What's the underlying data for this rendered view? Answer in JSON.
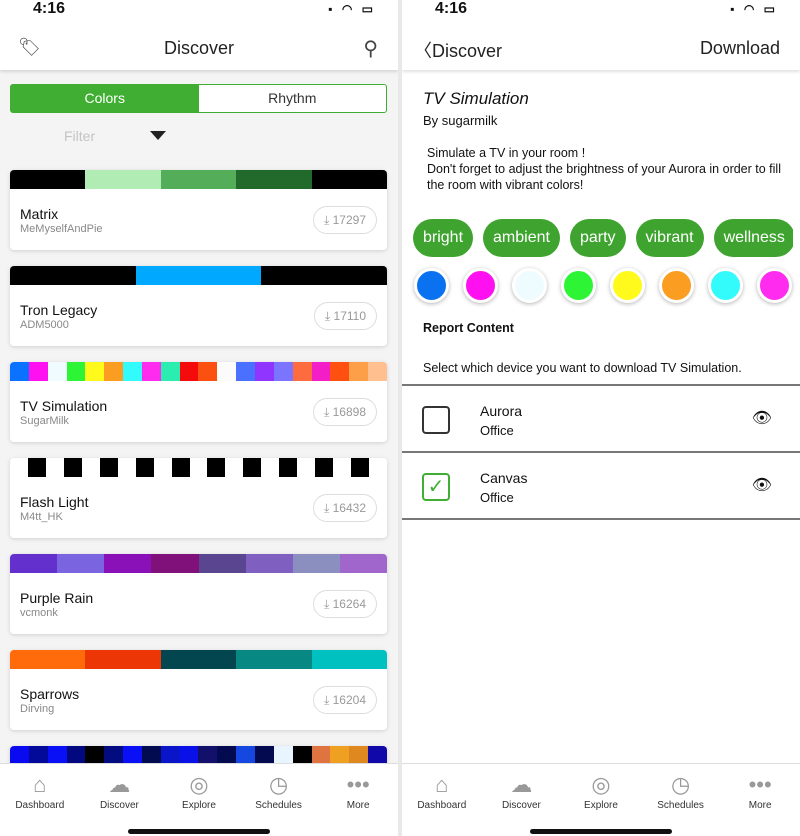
{
  "status": {
    "time": "4:16",
    "icons": "▪ ◠ ▭"
  },
  "left": {
    "title": "Discover",
    "tabs": [
      "Colors",
      "Rhythm"
    ],
    "filter_placeholder": "Filter",
    "cards": [
      {
        "name": "Matrix",
        "author": "MeMyselfAndPie",
        "downloads": "17297",
        "colors": [
          "#000000",
          "#b2ecb5",
          "#53ad59",
          "#226a2b",
          "#000000"
        ]
      },
      {
        "name": "Tron Legacy",
        "author": "ADM5000",
        "downloads": "17110",
        "colors": [
          "#000000",
          "#00a8ff",
          "#000000"
        ]
      },
      {
        "name": "TV Simulation",
        "author": "SugarMilk",
        "downloads": "16898",
        "colors": [
          "#0a72ff",
          "#ff10f0",
          "#f0fbff",
          "#2df536",
          "#fffa1c",
          "#fa9d21",
          "#33fbfb",
          "#ff2cf0",
          "#2bedb0",
          "#f50b0b",
          "#fb5010",
          "#fbfbfb",
          "#4a70ff",
          "#8f35ff",
          "#7b74ff",
          "#fe6b3e",
          "#f41ec8",
          "#ff5012",
          "#fc9f48",
          "#ffbf8e"
        ]
      },
      {
        "name": "Flash Light",
        "author": "M4tt_HK",
        "downloads": "16432",
        "colors": [
          "#ffffff",
          "#000000",
          "#ffffff",
          "#000000",
          "#ffffff",
          "#000000",
          "#ffffff",
          "#000000",
          "#ffffff",
          "#000000",
          "#ffffff",
          "#000000",
          "#ffffff",
          "#000000",
          "#ffffff",
          "#000000",
          "#ffffff",
          "#000000",
          "#ffffff",
          "#000000",
          "#ffffff"
        ]
      },
      {
        "name": "Purple Rain",
        "author": "vcmonk",
        "downloads": "16264",
        "colors": [
          "#6430cd",
          "#7a64e0",
          "#8a10b8",
          "#80107a",
          "#5a4590",
          "#7f60c0",
          "#8a8fc0",
          "#a066cc"
        ]
      },
      {
        "name": "Sparrows",
        "author": "Dirving",
        "downloads": "16204",
        "colors": [
          "#ff6a0a",
          "#ec3605",
          "#044650",
          "#078882",
          "#00c0c0"
        ]
      },
      {
        "name": "",
        "author": "",
        "downloads": "",
        "colors": [
          "#0a0af0",
          "#030a9a",
          "#0a10f5",
          "#020880",
          "#000000",
          "#020c80",
          "#0a10f5",
          "#020a50",
          "#0a14c8",
          "#0a10e8",
          "#12106a",
          "#030a50",
          "#1448e0",
          "#030a50",
          "#e8f4ff",
          "#000000",
          "#e07440",
          "#f0a020",
          "#e08820",
          "#1008a8"
        ]
      }
    ]
  },
  "right": {
    "back_label": "Discover",
    "download_label": "Download",
    "title": "TV Simulation",
    "by": "By sugarmilk",
    "description": "Simulate a TV in your room !\nDon't forget to adjust the brightness of your Aurora in order to fill the room with vibrant colors!",
    "tags": [
      "bright",
      "ambient",
      "party",
      "vibrant",
      "wellness"
    ],
    "palette": [
      "#0a72f0",
      "#ff10f0",
      "#effcff",
      "#2df536",
      "#fffa1c",
      "#fa9d21",
      "#33fbfb",
      "#ff2cf0"
    ],
    "report_label": "Report Content",
    "select_text": "Select which device you want to download TV Simulation.",
    "devices": [
      {
        "name": "Aurora",
        "room": "Office",
        "checked": false
      },
      {
        "name": "Canvas",
        "room": "Office",
        "checked": true
      }
    ]
  },
  "tabbar": [
    {
      "label": "Dashboard",
      "icon": "house-icon",
      "glyph": "⌂"
    },
    {
      "label": "Discover",
      "icon": "cloud-download-icon",
      "glyph": "☁"
    },
    {
      "label": "Explore",
      "icon": "compass-icon",
      "glyph": "◎"
    },
    {
      "label": "Schedules",
      "icon": "clock-icon",
      "glyph": "◷"
    },
    {
      "label": "More",
      "icon": "more-dots-icon",
      "glyph": "•••"
    }
  ],
  "accent": "#3fae32"
}
